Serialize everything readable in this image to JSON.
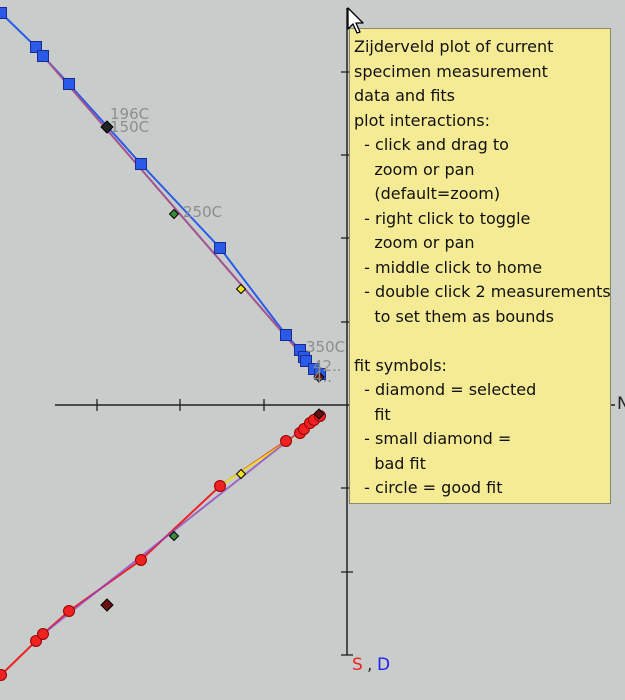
{
  "chart_data": {
    "type": "scatter",
    "title": "",
    "axes": {
      "vertical_axis_labels": [
        "S",
        ",",
        "D"
      ],
      "horizontal_axis_label_partial": "N",
      "colors": {
        "S": "#ee2222",
        "comma": "#333333",
        "D": "#2222ee"
      }
    },
    "step_labels": [
      "196C",
      "150C",
      "250C",
      "350C",
      "42..",
      "4.."
    ],
    "series": [
      {
        "name": "",
        "marker": "square",
        "color": "#2a5ae8",
        "points": [
          {
            "x": -346,
            "y": 392
          },
          {
            "x": -311,
            "y": 358
          },
          {
            "x": -304,
            "y": 349
          },
          {
            "x": -278,
            "y": 321
          },
          {
            "x": -206,
            "y": 241
          },
          {
            "x": -127,
            "y": 157
          },
          {
            "x": -61,
            "y": 70
          },
          {
            "x": -47,
            "y": 55
          },
          {
            "x": -43,
            "y": 48
          },
          {
            "x": -41,
            "y": 44
          },
          {
            "x": -33,
            "y": 36
          },
          {
            "x": -27,
            "y": 31
          }
        ]
      },
      {
        "name": "",
        "marker": "circle",
        "color": "#ee2222",
        "points": [
          {
            "x": -346,
            "y": -270
          },
          {
            "x": -311,
            "y": -236
          },
          {
            "x": -304,
            "y": -229
          },
          {
            "x": -278,
            "y": -206
          },
          {
            "x": -206,
            "y": -155
          },
          {
            "x": -127,
            "y": -81
          },
          {
            "x": -61,
            "y": -36
          },
          {
            "x": -47,
            "y": -28
          },
          {
            "x": -43,
            "y": -24
          },
          {
            "x": -37,
            "y": -18
          },
          {
            "x": -33,
            "y": -15
          },
          {
            "x": -27,
            "y": -11
          }
        ]
      }
    ],
    "fit_lines": [
      {
        "name": "",
        "color": "#e0a000"
      },
      {
        "name": "",
        "color": "#9040c0"
      }
    ],
    "fit_marker_colors": [
      "#222222",
      "#3a8a3a",
      "#f0e020",
      "#6a1010"
    ]
  },
  "tooltip_lines": [
    "Zijderveld plot of current",
    "specimen measurement",
    "data and fits",
    "plot interactions:",
    "  - click and drag to",
    "    zoom or pan",
    "    (default=zoom)",
    "  - right click to toggle",
    "    zoom or pan",
    "  - middle click to home",
    "  - double click 2 measurements",
    "    to set them as bounds",
    "",
    "fit symbols:",
    "  - diamond = selected",
    "    fit",
    "  - small diamond =",
    "    bad fit",
    "  - circle = good fit"
  ],
  "cursor_icon": "arrow-pointer-icon"
}
